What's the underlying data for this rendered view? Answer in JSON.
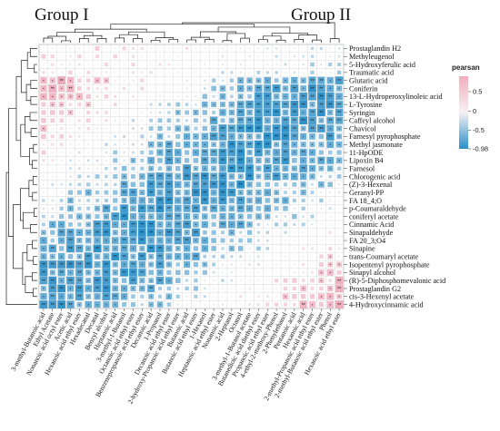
{
  "chart_data": {
    "type": "heatmap",
    "title": "",
    "group_labels": [
      "Group I",
      "Group II"
    ],
    "legend": {
      "title": "pearsan",
      "min": -0.98,
      "max": 0.9,
      "ticks": [
        0.5,
        0.0,
        -0.5,
        -0.98
      ],
      "tick_labels": [
        "0.5",
        "0",
        "-0.5",
        "-0.98"
      ],
      "low_color": "#2a8fc9",
      "mid_color": "#f7f3f4",
      "high_color": "#e8768e"
    },
    "rows": [
      "Prostaglandin H2",
      "Methyleugenol",
      "5-Hydroxyferulic acid",
      "Traumatic acid",
      "Glutaric acid",
      "Coniferin",
      "13-L-Hydroperoxylinoleic acid",
      "L-Tyrosine",
      "Syringin",
      "Caffeyl alcohol",
      "Chavicol",
      "Farnesyl pyrophosphate",
      "Methyl jasmonate",
      "11-HpODE",
      "Lipoxin B4",
      "Farnesol",
      "Chlorogenic acid",
      "(Z)-3-Hexenal",
      "Geranyl-PP",
      "FA 18_4;O",
      "p-Coumaraldehyde",
      "coniferyl acetate",
      "Cinnamic Acid",
      "Sinapaldehyde",
      "FA 20_3;O4",
      "Sinapine",
      "trans-Coumaryl acetate",
      "Isopentenyl pyrophosphate",
      "Sinapyl alcohol",
      "(R)-5-Diphosphomevalonic acid",
      "Prostaglandin G2",
      "cis-3-Hexenyl acetate",
      "4-Hydroxycinnamic acid"
    ],
    "columns": [
      "3-methyl-Butanoic acid",
      "Ethyl Acetate",
      "Nonanoic acid octyl ester",
      "Acetic acid",
      "Hexanoic acid ethyl ester",
      "Hexadecanal",
      "Decanal",
      "Benzyl alcohol",
      "Heptanoic acid",
      "3-methyl-1-Butanol",
      "Octanoic acid ethyl ester",
      "Benzenepropanoic acid ethyl ester",
      "Decanoic acid",
      "1-Propanol",
      "Decanoic acid ethyl ester",
      "2-hydroxy-Propanoic acid ethyl ester",
      "Butanoic acid",
      "Butanoic acid ethyl ester",
      "1-Hexanol",
      "Heptanoic acid ethyl ester",
      "Nonanoic acid",
      "2-Heptanol",
      "Octanol",
      "3-methyl-1-Butanol acetate",
      "Butanedioic acid diethyl ester",
      "Propanoic acid ethyl ester",
      "4-ethyl-2-methoxy-Phenol",
      "2-Phenylethanol",
      "Pentanoic acid",
      "Hexanoic acid",
      "2-methyl-Propanoic acid ethyl ester",
      "2-methyl-Butanoic acid ethyl ester",
      "Phenol",
      "Hexanoic acid ethyl ester"
    ]
  }
}
